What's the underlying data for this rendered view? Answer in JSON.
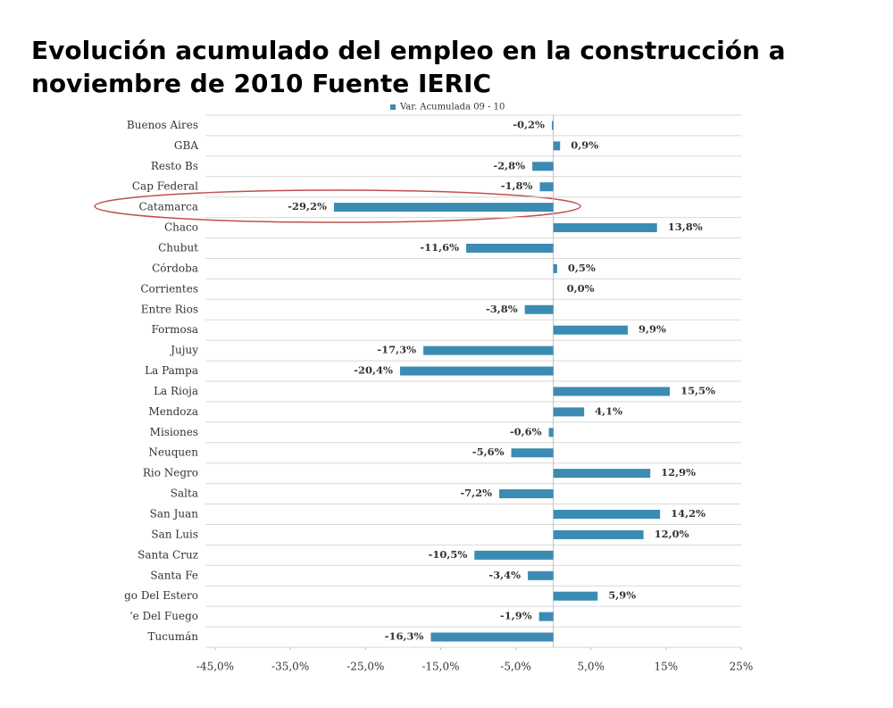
{
  "chart_data": {
    "type": "bar",
    "orientation": "horizontal",
    "title": "Evolución acumulado del empleo en la construcción a noviembre de 2010 Fuente IERIC",
    "categories": [
      "Buenos Aires",
      "GBA",
      "Resto Bs",
      "Cap Federal",
      "Catamarca",
      "Chaco",
      "Chubut",
      "Córdoba",
      "Corrientes",
      "Entre Rios",
      "Formosa",
      "Jujuy",
      "La Pampa",
      "La Rioja",
      "Mendoza",
      "Misiones",
      "Neuquen",
      "Rio Negro",
      "Salta",
      "San Juan",
      "San Luis",
      "Santa Cruz",
      "Santa Fe",
      "go Del Estero",
      "'e Del Fuego",
      "Tucumán"
    ],
    "series": [
      {
        "name": "Var. Acumulada 09 - 10",
        "color": "#3b8bb3",
        "values": [
          -0.2,
          0.9,
          -2.8,
          -1.8,
          -29.2,
          13.8,
          -11.6,
          0.5,
          0.0,
          -3.8,
          9.9,
          -17.3,
          -20.4,
          15.5,
          4.1,
          -0.6,
          -5.6,
          12.9,
          -7.2,
          14.2,
          12.0,
          -10.5,
          -3.4,
          5.9,
          -1.9,
          -16.3
        ],
        "value_labels": [
          "-0,2%",
          "0,9%",
          "-2,8%",
          "-1,8%",
          "-29,2%",
          "13,8%",
          "-11,6%",
          "0,5%",
          "0,0%",
          "-3,8%",
          "9,9%",
          "-17,3%",
          "-20,4%",
          "15,5%",
          "4,1%",
          "-0,6%",
          "-5,6%",
          "12,9%",
          "-7,2%",
          "14,2%",
          "12,0%",
          "-10,5%",
          "-3,4%",
          "5,9%",
          "-1,9%",
          "-16,3%"
        ]
      }
    ],
    "xlim": [
      -45,
      25
    ],
    "xticks": [
      {
        "value": -45,
        "label": "-45,0%"
      },
      {
        "value": -35,
        "label": "-35,0%"
      },
      {
        "value": -25,
        "label": "-25,0%"
      },
      {
        "value": -15,
        "label": "-15,0%"
      },
      {
        "value": -5,
        "label": "-5,0%"
      },
      {
        "value": 5,
        "label": "5,0%"
      },
      {
        "value": 15,
        "label": "15%"
      },
      {
        "value": 25,
        "label": "25%"
      }
    ],
    "legend": "top"
  }
}
